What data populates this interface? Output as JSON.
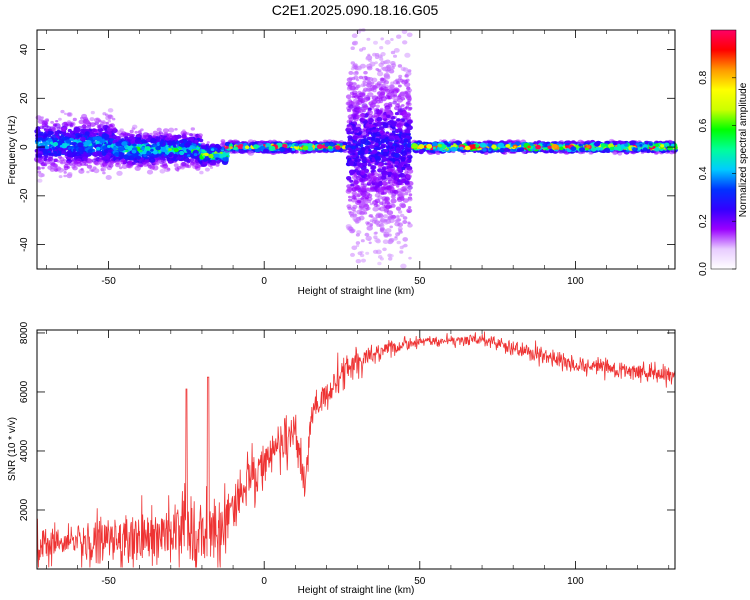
{
  "figure": {
    "title": "C2E1.2025.090.18.16.G05"
  },
  "chart_data": [
    {
      "type": "heatmap",
      "xlabel": "Height of straight line (km)",
      "ylabel": "Frequency (Hz)",
      "xlim": [
        -73,
        132
      ],
      "ylim": [
        -50,
        48
      ],
      "x_ticks": [
        -50,
        0,
        50,
        100
      ],
      "y_ticks": [
        -40,
        -20,
        0,
        20,
        40
      ],
      "grid": false,
      "colorbar": {
        "label": "Normalized spectral amplitude",
        "range": [
          0,
          1
        ],
        "ticks": [
          0.0,
          0.2,
          0.4,
          0.6,
          0.8
        ],
        "colors": [
          "#ffffff",
          "#e8ccff",
          "#9a00ff",
          "#3300ff",
          "#0033ff",
          "#00ccff",
          "#00ff99",
          "#00ff00",
          "#ccff00",
          "#ffff00",
          "#ff9900",
          "#ff0000",
          "#ff0066"
        ]
      },
      "segments": [
        {
          "x": [
            -73,
            -48
          ],
          "center_hz": 1,
          "spread_hz": 12,
          "amplitude": 0.35
        },
        {
          "x": [
            -48,
            -20
          ],
          "center_hz": -1,
          "spread_hz": 8,
          "amplitude": 0.45
        },
        {
          "x": [
            -20,
            -12
          ],
          "center_hz": -3,
          "spread_hz": 5,
          "amplitude": 0.6
        },
        {
          "x": [
            -12,
            26
          ],
          "center_hz": 0,
          "spread_hz": 2,
          "amplitude": 0.75
        },
        {
          "x": [
            27,
            47
          ],
          "center_hz": 0,
          "spread_hz": 45,
          "amplitude": 0.2
        },
        {
          "x": [
            48,
            132
          ],
          "center_hz": 0,
          "spread_hz": 2,
          "amplitude": 0.85
        }
      ]
    },
    {
      "type": "line",
      "xlabel": "Height of straight line (km)",
      "ylabel": "SNR (10 * v/v)",
      "xlim": [
        -73,
        132
      ],
      "ylim": [
        0,
        8100
      ],
      "x_ticks": [
        -50,
        0,
        50,
        100
      ],
      "y_ticks": [
        2000,
        4000,
        6000,
        8000
      ],
      "grid": false,
      "series": [
        {
          "color": "#ee3333",
          "x": [
            -73,
            -60,
            -50,
            -40,
            -30,
            -20,
            -15,
            -10,
            -5,
            0,
            5,
            10,
            13,
            15,
            20,
            25,
            30,
            35,
            40,
            50,
            60,
            70,
            80,
            90,
            100,
            110,
            120,
            132
          ],
          "y": [
            800,
            900,
            1000,
            1100,
            1300,
            1200,
            1400,
            2200,
            3000,
            3500,
            4200,
            4800,
            2700,
            5200,
            6000,
            6600,
            7000,
            7300,
            7500,
            7700,
            7750,
            7800,
            7500,
            7200,
            6900,
            6800,
            6700,
            6600
          ],
          "noise": [
            600,
            600,
            650,
            800,
            1000,
            1100,
            1000,
            800,
            700,
            650,
            600,
            550,
            500,
            500,
            450,
            400,
            300,
            250,
            200,
            150,
            150,
            180,
            200,
            220,
            220,
            220,
            220,
            220
          ]
        }
      ],
      "annotations": [
        {
          "x": -25,
          "y": 6100
        },
        {
          "x": -18,
          "y": 6500
        }
      ]
    }
  ]
}
